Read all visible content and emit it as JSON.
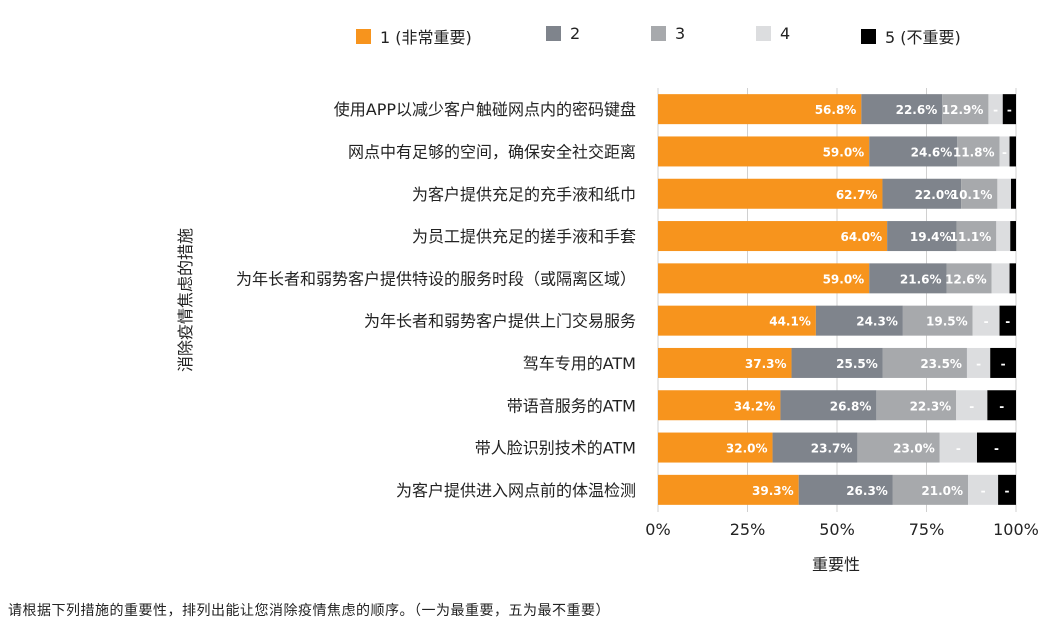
{
  "chart_data": {
    "type": "bar",
    "orientation": "horizontal",
    "stacked": true,
    "title": "",
    "xlabel": "重要性",
    "ylabel": "消除疫情焦虑的措施",
    "xlim": [
      0,
      100
    ],
    "x_ticks": [
      "0%",
      "25%",
      "50%",
      "75%",
      "100%"
    ],
    "grid": true,
    "legend_position": "top",
    "categories": [
      "使用APP以减少客户触碰网点内的密码键盘",
      "网点中有足够的空间，确保安全社交距离",
      "为客户提供充足的充手液和纸巾",
      "为员工提供充足的搓手液和手套",
      "为年长者和弱势客户提供特设的服务时段（或隔离区域）",
      "为年长者和弱势客户提供上门交易服务",
      "驾车专用的ATM",
      "带语音服务的ATM",
      "带人脸识别技术的ATM",
      "为客户提供进入网点前的体温检测"
    ],
    "series": [
      {
        "name": "1 (非常重要)",
        "color": "#f7941d",
        "values": [
          56.8,
          59.0,
          62.7,
          64.0,
          59.0,
          44.1,
          37.3,
          34.2,
          32.0,
          39.3
        ],
        "labels": [
          "56.8%",
          "59.0%",
          "62.7%",
          "64.0%",
          "59.0%",
          "44.1%",
          "37.3%",
          "34.2%",
          "32.0%",
          "39.3%"
        ]
      },
      {
        "name": "2",
        "color": "#7f848c",
        "values": [
          22.6,
          24.6,
          22.0,
          19.4,
          21.6,
          24.3,
          25.5,
          26.8,
          23.7,
          26.3
        ],
        "labels": [
          "22.6%",
          "24.6%",
          "22.0%",
          "19.4%",
          "21.6%",
          "24.3%",
          "25.5%",
          "26.8%",
          "23.7%",
          "26.3%"
        ]
      },
      {
        "name": "3",
        "color": "#a7a9ac",
        "values": [
          12.9,
          11.8,
          10.1,
          11.1,
          12.6,
          19.5,
          23.5,
          22.3,
          23.0,
          21.0
        ],
        "labels": [
          "12.9%",
          "11.8%",
          "10.1%",
          "11.1%",
          "12.6%",
          "19.5%",
          "23.5%",
          "22.3%",
          "23.0%",
          "21.0%"
        ]
      },
      {
        "name": "4",
        "color": "#dcdddf",
        "values": [
          4.0,
          2.8,
          3.8,
          3.9,
          5.0,
          7.5,
          6.5,
          8.7,
          10.4,
          8.4
        ],
        "labels": [
          "-",
          "-",
          "",
          "",
          "",
          "-",
          "-",
          "-",
          "-",
          "-"
        ]
      },
      {
        "name": "5 (不重要)",
        "color": "#000000",
        "values": [
          3.7,
          1.8,
          1.4,
          1.6,
          1.8,
          4.6,
          7.2,
          8.0,
          10.9,
          5.0
        ],
        "labels": [
          "-",
          "",
          "",
          "",
          "",
          "-",
          "-",
          "-",
          "-",
          "-"
        ]
      }
    ]
  },
  "footnote": "请根据下列措施的重要性，排列出能让您消除疫情焦虑的顺序。（一为最重要，五为最不重要）"
}
